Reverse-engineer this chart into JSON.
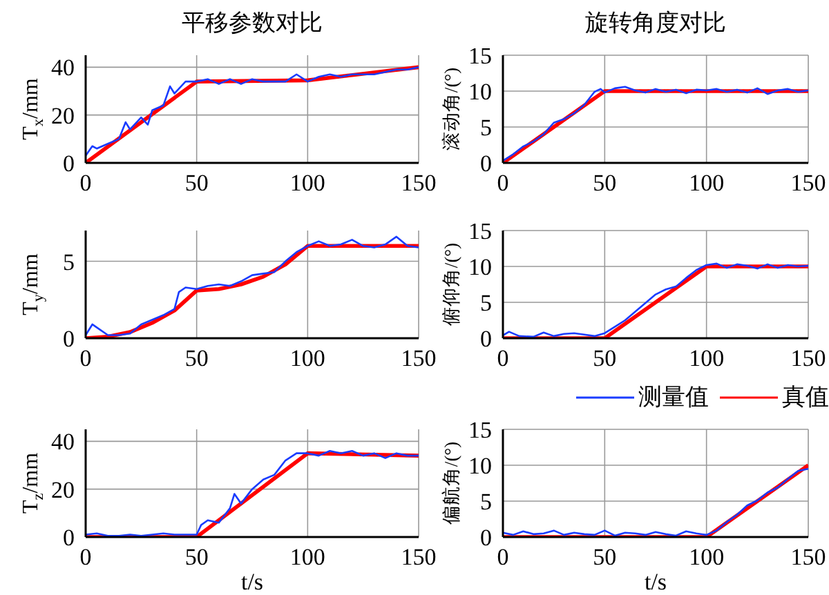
{
  "chart_data": [
    {
      "type": "line",
      "title": "平移参数对比",
      "ylabel": "T$_{x}$/mm",
      "xlim": [
        0,
        150
      ],
      "xticks": [
        0,
        50,
        100,
        150
      ],
      "ylim": [
        0,
        45
      ],
      "yticks": [
        0,
        20,
        40
      ],
      "grid": true,
      "series": [
        {
          "color": "#1a3cff",
          "x": [
            0,
            3,
            5,
            10,
            15,
            18,
            20,
            25,
            28,
            30,
            35,
            38,
            40,
            45,
            50,
            55,
            60,
            65,
            70,
            75,
            80,
            85,
            90,
            95,
            100,
            105,
            110,
            115,
            120,
            125,
            130,
            135,
            140,
            145,
            150
          ],
          "values": [
            3,
            7,
            6,
            8,
            10,
            17,
            14,
            19,
            16,
            22,
            24,
            32,
            29,
            34,
            34,
            35,
            33,
            35,
            33,
            35,
            34,
            34,
            34,
            37,
            34,
            36,
            37,
            36,
            37,
            37,
            37,
            38,
            39,
            39,
            40
          ]
        },
        {
          "color": "#ff0000",
          "x": [
            0,
            50,
            100,
            150
          ],
          "values": [
            0,
            34,
            34.5,
            40
          ]
        }
      ]
    },
    {
      "type": "line",
      "title": "旋转角度对比",
      "ylabel": "滚动角/(°)",
      "xlim": [
        0,
        150
      ],
      "xticks": [
        0,
        50,
        100,
        150
      ],
      "ylim": [
        0,
        15
      ],
      "yticks": [
        0,
        5,
        10,
        15
      ],
      "grid": true,
      "series": [
        {
          "color": "#1a3cff",
          "x": [
            0,
            5,
            10,
            15,
            20,
            25,
            30,
            35,
            40,
            45,
            48,
            50,
            55,
            60,
            65,
            70,
            75,
            80,
            85,
            90,
            95,
            100,
            105,
            110,
            115,
            120,
            125,
            130,
            135,
            140,
            145,
            150
          ],
          "values": [
            0.3,
            1.2,
            2.3,
            3,
            4,
            5.6,
            6.1,
            6.9,
            8.1,
            9.9,
            10.3,
            9.8,
            10.4,
            10.6,
            10.1,
            9.8,
            10.3,
            9.9,
            10.2,
            9.7,
            10.2,
            10.1,
            10.3,
            9.9,
            10.2,
            9.8,
            10.4,
            9.6,
            10.1,
            10.3,
            9.9,
            10.1
          ]
        },
        {
          "color": "#ff0000",
          "x": [
            0,
            50,
            150
          ],
          "values": [
            0,
            10,
            10
          ]
        }
      ]
    },
    {
      "type": "line",
      "ylabel": "T$_{y}$/mm",
      "xlim": [
        0,
        150
      ],
      "xticks": [
        0,
        50,
        100,
        150
      ],
      "ylim": [
        0,
        7
      ],
      "yticks": [
        0,
        5
      ],
      "grid": true,
      "series": [
        {
          "color": "#1a3cff",
          "x": [
            0,
            3,
            5,
            10,
            15,
            20,
            25,
            30,
            35,
            40,
            42,
            45,
            50,
            55,
            60,
            65,
            70,
            75,
            80,
            85,
            90,
            95,
            100,
            105,
            110,
            115,
            120,
            125,
            130,
            135,
            140,
            145,
            150
          ],
          "values": [
            0.2,
            0.9,
            0.7,
            0.2,
            0.2,
            0.3,
            0.9,
            1.2,
            1.5,
            1.9,
            3,
            3.3,
            3.2,
            3.4,
            3.5,
            3.4,
            3.7,
            4.1,
            4.2,
            4.3,
            5,
            5.6,
            6,
            6.3,
            6,
            6.1,
            6.4,
            6,
            5.9,
            6.1,
            6.6,
            6,
            5.9
          ]
        },
        {
          "color": "#ff0000",
          "x": [
            0,
            10,
            20,
            30,
            40,
            50,
            60,
            70,
            80,
            90,
            100,
            150
          ],
          "values": [
            0,
            0.1,
            0.4,
            1,
            1.8,
            3.1,
            3.2,
            3.5,
            4,
            4.8,
            6,
            6
          ]
        }
      ]
    },
    {
      "type": "line",
      "ylabel": "俯仰角/(°)",
      "xlim": [
        0,
        150
      ],
      "xticks": [
        0,
        50,
        100,
        150
      ],
      "ylim": [
        0,
        15
      ],
      "yticks": [
        0,
        5,
        10,
        15
      ],
      "grid": true,
      "series": [
        {
          "color": "#1a3cff",
          "x": [
            0,
            3,
            8,
            15,
            20,
            25,
            30,
            35,
            40,
            45,
            50,
            55,
            60,
            65,
            70,
            75,
            80,
            85,
            90,
            95,
            100,
            105,
            110,
            115,
            120,
            125,
            130,
            135,
            140,
            145,
            150
          ],
          "values": [
            0.4,
            0.9,
            0.3,
            0.2,
            0.8,
            0.3,
            0.6,
            0.7,
            0.5,
            0.3,
            0.7,
            1.6,
            2.5,
            3.7,
            4.9,
            6.1,
            6.8,
            7.2,
            8.4,
            9.5,
            10.2,
            10.4,
            9.8,
            10.3,
            10.1,
            9.7,
            10.3,
            9.8,
            10.2,
            10,
            10.1
          ]
        },
        {
          "color": "#ff0000",
          "x": [
            0,
            50,
            100,
            150
          ],
          "values": [
            0,
            0,
            10,
            10
          ]
        }
      ]
    },
    {
      "type": "line",
      "ylabel": "T$_{z}$/mm",
      "xlabel": "t/s",
      "xlim": [
        0,
        150
      ],
      "xticks": [
        0,
        50,
        100,
        150
      ],
      "ylim": [
        0,
        45
      ],
      "yticks": [
        0,
        20,
        40
      ],
      "grid": true,
      "series": [
        {
          "color": "#1a3cff",
          "x": [
            0,
            5,
            10,
            15,
            20,
            25,
            30,
            35,
            40,
            45,
            50,
            52,
            55,
            60,
            65,
            67,
            70,
            75,
            80,
            85,
            90,
            95,
            100,
            105,
            110,
            115,
            120,
            125,
            130,
            135,
            140,
            145,
            150
          ],
          "values": [
            1,
            1.5,
            0.5,
            0.5,
            1,
            0.5,
            1,
            1.5,
            1,
            1,
            1,
            5,
            7,
            6,
            12,
            18,
            14,
            20,
            24,
            26,
            32,
            35,
            35,
            34,
            36,
            35,
            36,
            34,
            35,
            33,
            35,
            34,
            34
          ]
        },
        {
          "color": "#ff0000",
          "x": [
            0,
            50,
            100,
            150
          ],
          "values": [
            0,
            0,
            35,
            34
          ]
        }
      ]
    },
    {
      "type": "line",
      "ylabel": "偏航角/(°)",
      "xlabel": "t/s",
      "xlim": [
        0,
        150
      ],
      "xticks": [
        0,
        50,
        100,
        150
      ],
      "ylim": [
        0,
        15
      ],
      "yticks": [
        0,
        5,
        10,
        15
      ],
      "grid": true,
      "legend": "top right",
      "series": [
        {
          "name": "测量值",
          "color": "#1a3cff",
          "x": [
            0,
            5,
            10,
            15,
            20,
            25,
            30,
            35,
            40,
            45,
            50,
            55,
            60,
            65,
            70,
            75,
            80,
            85,
            90,
            95,
            100,
            105,
            110,
            115,
            120,
            125,
            130,
            135,
            140,
            145,
            150
          ],
          "values": [
            0.6,
            0.3,
            0.8,
            0.4,
            0.5,
            0.9,
            0.3,
            0.6,
            0.4,
            0.3,
            0.9,
            0.2,
            0.6,
            0.5,
            0.3,
            0.7,
            0.4,
            0.2,
            0.8,
            0.5,
            0.3,
            0.9,
            2.1,
            3.1,
            4.4,
            5.1,
            6.2,
            6.9,
            8.1,
            9.2,
            9.5
          ]
        },
        {
          "name": "真值",
          "color": "#ff0000",
          "x": [
            0,
            100,
            150
          ],
          "values": [
            0,
            0,
            10
          ]
        }
      ]
    }
  ]
}
